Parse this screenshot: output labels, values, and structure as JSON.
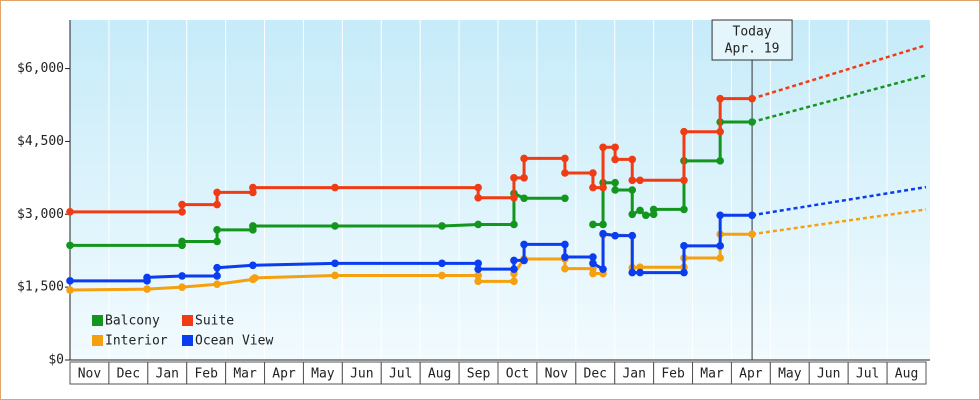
{
  "chart_data": {
    "type": "line",
    "ylim": [
      0,
      7000
    ],
    "yticks": [
      {
        "value": 0,
        "label": "$0"
      },
      {
        "value": 1500,
        "label": "$1,500"
      },
      {
        "value": 3000,
        "label": "$3,000"
      },
      {
        "value": 4500,
        "label": "$4,500"
      },
      {
        "value": 6000,
        "label": "$6,000"
      }
    ],
    "xlim": [
      0,
      22
    ],
    "xticks": [
      {
        "value": 0.5,
        "label": "Nov"
      },
      {
        "value": 1.5,
        "label": "Dec"
      },
      {
        "value": 2.5,
        "label": "Jan"
      },
      {
        "value": 3.5,
        "label": "Feb"
      },
      {
        "value": 4.5,
        "label": "Mar"
      },
      {
        "value": 5.5,
        "label": "Apr"
      },
      {
        "value": 6.5,
        "label": "May"
      },
      {
        "value": 7.5,
        "label": "Jun"
      },
      {
        "value": 8.5,
        "label": "Jul"
      },
      {
        "value": 9.5,
        "label": "Aug"
      },
      {
        "value": 10.5,
        "label": "Sep"
      },
      {
        "value": 11.5,
        "label": "Oct"
      },
      {
        "value": 12.5,
        "label": "Nov"
      },
      {
        "value": 13.5,
        "label": "Dec"
      },
      {
        "value": 14.5,
        "label": "Jan"
      },
      {
        "value": 15.5,
        "label": "Feb"
      },
      {
        "value": 16.5,
        "label": "Mar"
      },
      {
        "value": 17.5,
        "label": "Apr"
      },
      {
        "value": 18.5,
        "label": "May"
      },
      {
        "value": 19.5,
        "label": "Jun"
      },
      {
        "value": 20.5,
        "label": "Jul"
      },
      {
        "value": 21.5,
        "label": "Aug"
      }
    ],
    "grid": true,
    "legend": "lower left",
    "today": {
      "label": "Today",
      "date": "Apr. 19",
      "x": 17.53
    },
    "forecast_x": 22,
    "series": [
      {
        "name": "Balcony",
        "color": "#14961e",
        "x": [
          0,
          2.88,
          2.88,
          3.78,
          3.78,
          4.7,
          4.7,
          6.81,
          9.56,
          10.49,
          11.41,
          11.41,
          11.67,
          12.72,
          13.0,
          13.44,
          13.7,
          13.7,
          14.01,
          14.01,
          14.45,
          14.45,
          14.65,
          14.8,
          15.0,
          15.0,
          15.78,
          15.78,
          16.71,
          16.71,
          17.53
        ],
        "values": [
          2360,
          2360,
          2440,
          2440,
          2680,
          2680,
          2760,
          2760,
          2760,
          2790,
          2790,
          3430,
          3330,
          3330,
          null,
          2790,
          2790,
          3650,
          3650,
          3500,
          3500,
          3000,
          3080,
          2980,
          3000,
          3100,
          3100,
          4100,
          4100,
          4900,
          4900
        ],
        "forecast": 5860
      },
      {
        "name": "Suite",
        "color": "#f03c14",
        "x": [
          0,
          2.88,
          2.88,
          3.78,
          3.78,
          4.7,
          4.7,
          6.81,
          10.49,
          10.49,
          11.41,
          11.41,
          11.67,
          11.67,
          12.72,
          12.72,
          13.44,
          13.44,
          13.7,
          13.7,
          14.01,
          14.01,
          14.45,
          14.45,
          14.65,
          15.78,
          15.78,
          16.71,
          16.71,
          17.53
        ],
        "values": [
          3050,
          3050,
          3200,
          3200,
          3450,
          3450,
          3550,
          3550,
          3550,
          3340,
          3340,
          3750,
          3750,
          4150,
          4150,
          3850,
          3850,
          3550,
          3550,
          4380,
          4380,
          4130,
          4130,
          3700,
          3700,
          3700,
          4700,
          4700,
          5380,
          5380
        ],
        "forecast": 6480
      },
      {
        "name": "Interior",
        "color": "#f5a00f",
        "x": [
          0,
          1.98,
          2.88,
          3.78,
          4.7,
          4.75,
          6.81,
          9.56,
          10.49,
          10.49,
          11.41,
          11.41,
          11.67,
          12.72,
          12.72,
          13.44,
          13.44,
          13.7,
          13.7,
          14.45,
          14.45,
          14.65,
          15.78,
          15.78,
          16.71,
          16.71,
          17.53
        ],
        "values": [
          1440,
          1460,
          1500,
          1560,
          1660,
          1690,
          1740,
          1740,
          1740,
          1620,
          1620,
          1780,
          2080,
          2080,
          1880,
          1880,
          1780,
          1780,
          2580,
          2560,
          1900,
          1910,
          1910,
          2100,
          2100,
          2590,
          2590
        ],
        "forecast": 3100
      },
      {
        "name": "Ocean View",
        "color": "#0a3cf0",
        "x": [
          0,
          1.98,
          1.98,
          2.88,
          3.78,
          3.78,
          4.7,
          6.81,
          9.56,
          10.49,
          10.49,
          11.41,
          11.41,
          11.67,
          11.67,
          12.72,
          12.72,
          13.44,
          13.44,
          13.7,
          13.7,
          14.01,
          14.45,
          14.45,
          14.65,
          15.78,
          15.78,
          16.71,
          16.71,
          17.53
        ],
        "values": [
          1630,
          1630,
          1700,
          1730,
          1730,
          1900,
          1950,
          1990,
          1990,
          1990,
          1870,
          1870,
          2050,
          2050,
          2380,
          2380,
          2120,
          2120,
          1990,
          1870,
          2600,
          2560,
          2560,
          1800,
          1800,
          1800,
          2350,
          2350,
          2980,
          2980
        ],
        "forecast": 3560
      }
    ]
  }
}
